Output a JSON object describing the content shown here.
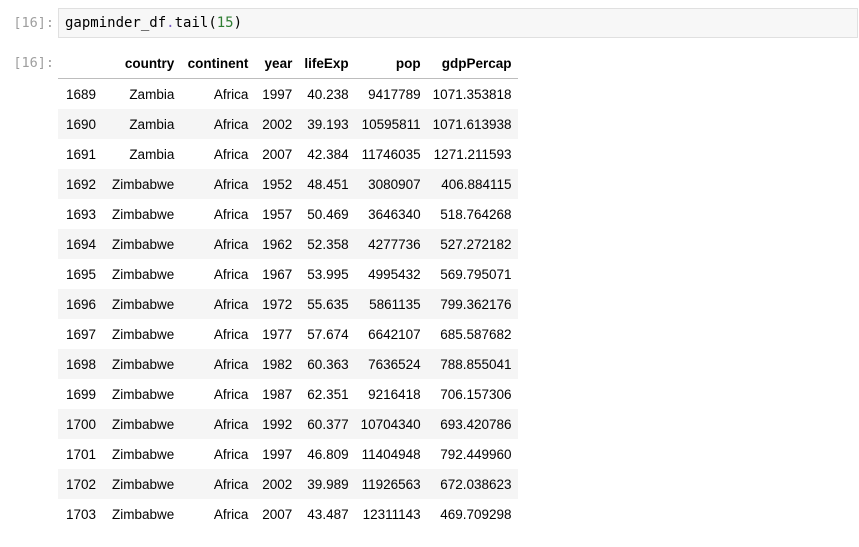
{
  "input_cell": {
    "prompt": "[16]:",
    "code": {
      "object": "gapminder_df",
      "dot": ".",
      "method": "tail",
      "open": "(",
      "arg": "15",
      "close": ")"
    }
  },
  "output_cell": {
    "prompt": "[16]:"
  },
  "dataframe": {
    "columns": [
      "",
      "country",
      "continent",
      "year",
      "lifeExp",
      "pop",
      "gdpPercap"
    ],
    "rows": [
      {
        "index": "1689",
        "country": "Zambia",
        "continent": "Africa",
        "year": "1997",
        "lifeExp": "40.238",
        "pop": "9417789",
        "gdpPercap": "1071.353818"
      },
      {
        "index": "1690",
        "country": "Zambia",
        "continent": "Africa",
        "year": "2002",
        "lifeExp": "39.193",
        "pop": "10595811",
        "gdpPercap": "1071.613938"
      },
      {
        "index": "1691",
        "country": "Zambia",
        "continent": "Africa",
        "year": "2007",
        "lifeExp": "42.384",
        "pop": "11746035",
        "gdpPercap": "1271.211593"
      },
      {
        "index": "1692",
        "country": "Zimbabwe",
        "continent": "Africa",
        "year": "1952",
        "lifeExp": "48.451",
        "pop": "3080907",
        "gdpPercap": "406.884115"
      },
      {
        "index": "1693",
        "country": "Zimbabwe",
        "continent": "Africa",
        "year": "1957",
        "lifeExp": "50.469",
        "pop": "3646340",
        "gdpPercap": "518.764268"
      },
      {
        "index": "1694",
        "country": "Zimbabwe",
        "continent": "Africa",
        "year": "1962",
        "lifeExp": "52.358",
        "pop": "4277736",
        "gdpPercap": "527.272182"
      },
      {
        "index": "1695",
        "country": "Zimbabwe",
        "continent": "Africa",
        "year": "1967",
        "lifeExp": "53.995",
        "pop": "4995432",
        "gdpPercap": "569.795071"
      },
      {
        "index": "1696",
        "country": "Zimbabwe",
        "continent": "Africa",
        "year": "1972",
        "lifeExp": "55.635",
        "pop": "5861135",
        "gdpPercap": "799.362176"
      },
      {
        "index": "1697",
        "country": "Zimbabwe",
        "continent": "Africa",
        "year": "1977",
        "lifeExp": "57.674",
        "pop": "6642107",
        "gdpPercap": "685.587682"
      },
      {
        "index": "1698",
        "country": "Zimbabwe",
        "continent": "Africa",
        "year": "1982",
        "lifeExp": "60.363",
        "pop": "7636524",
        "gdpPercap": "788.855041"
      },
      {
        "index": "1699",
        "country": "Zimbabwe",
        "continent": "Africa",
        "year": "1987",
        "lifeExp": "62.351",
        "pop": "9216418",
        "gdpPercap": "706.157306"
      },
      {
        "index": "1700",
        "country": "Zimbabwe",
        "continent": "Africa",
        "year": "1992",
        "lifeExp": "60.377",
        "pop": "10704340",
        "gdpPercap": "693.420786"
      },
      {
        "index": "1701",
        "country": "Zimbabwe",
        "continent": "Africa",
        "year": "1997",
        "lifeExp": "46.809",
        "pop": "11404948",
        "gdpPercap": "792.449960"
      },
      {
        "index": "1702",
        "country": "Zimbabwe",
        "continent": "Africa",
        "year": "2002",
        "lifeExp": "39.989",
        "pop": "11926563",
        "gdpPercap": "672.038623"
      },
      {
        "index": "1703",
        "country": "Zimbabwe",
        "continent": "Africa",
        "year": "2007",
        "lifeExp": "43.487",
        "pop": "12311143",
        "gdpPercap": "469.709298"
      }
    ]
  },
  "colors": {
    "prompt_gray": "#9e9e9e",
    "code_background": "#f7f7f7",
    "code_border": "#e0e0e0",
    "zebra_row": "#f5f5f5",
    "operator_purple": "#7a5cc4",
    "number_green": "#2e7d32"
  }
}
